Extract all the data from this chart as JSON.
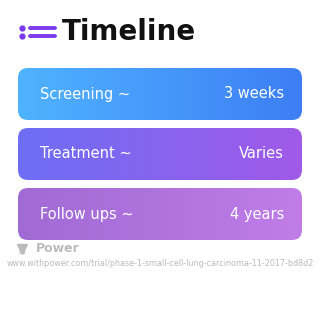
{
  "title": "Timeline",
  "title_icon_color": "#7c3aed",
  "title_color": "#111111",
  "background_color": "#ffffff",
  "rows": [
    {
      "label": "Screening ~",
      "value": "3 weeks",
      "color_left": "#4fb3ff",
      "color_right": "#3d7ef5"
    },
    {
      "label": "Treatment ~",
      "value": "Varies",
      "color_left": "#6e6ef5",
      "color_right": "#a05ae8"
    },
    {
      "label": "Follow ups ~",
      "value": "4 years",
      "color_left": "#a06ad4",
      "color_right": "#c07de8"
    }
  ],
  "footer_text": "Power",
  "footer_url": "www.withpower.com/trial/phase-1-small-cell-lung-carcinoma-11-2017-bd8d2",
  "footer_color": "#bbbbbb",
  "row_text_color": "#ffffff",
  "label_fontsize": 10.5,
  "value_fontsize": 10.5,
  "title_fontsize": 20,
  "footer_fontsize": 5.8
}
